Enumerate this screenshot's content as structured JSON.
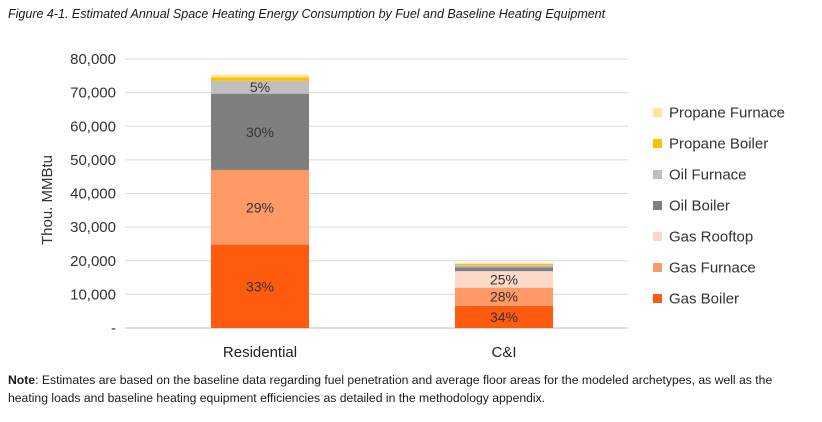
{
  "figure_title": "Figure 4-1. Estimated Annual Space Heating Energy Consumption by Fuel and Baseline Heating Equipment",
  "note": {
    "label": "Note",
    "text": ": Estimates are based on the baseline data regarding fuel penetration and average floor areas for the modeled archetypes, as well as the heating loads and baseline heating equipment efficiencies as detailed in the methodology appendix."
  },
  "chart_data": {
    "type": "bar",
    "stacked": true,
    "title": "",
    "xlabel": "",
    "ylabel": "Thou. MMBtu",
    "ylim": [
      0,
      80000
    ],
    "yticks": [
      0,
      10000,
      20000,
      30000,
      40000,
      50000,
      60000,
      70000,
      80000
    ],
    "ytick_labels": [
      "-",
      "10,000",
      "20,000",
      "30,000",
      "40,000",
      "50,000",
      "60,000",
      "70,000",
      "80,000"
    ],
    "grid": true,
    "legend_position": "right",
    "categories": [
      "Residential",
      "C&I"
    ],
    "series": [
      {
        "name": "Gas Boiler",
        "color": "#FF5B0F",
        "values": [
          24800,
          6600
        ],
        "labels": [
          "33%",
          "34%"
        ]
      },
      {
        "name": "Gas Furnace",
        "color": "#FF9966",
        "values": [
          22200,
          5400
        ],
        "labels": [
          "29%",
          "28%"
        ]
      },
      {
        "name": "Gas Rooftop",
        "color": "#FCD9C8",
        "values": [
          0,
          4900
        ],
        "labels": [
          "",
          "25%"
        ]
      },
      {
        "name": "Oil Boiler",
        "color": "#7F7F7F",
        "values": [
          22700,
          1100
        ],
        "labels": [
          "30%",
          ""
        ]
      },
      {
        "name": "Oil Furnace",
        "color": "#BFBFBF",
        "values": [
          3800,
          700
        ],
        "labels": [
          "5%",
          ""
        ]
      },
      {
        "name": "Propane Boiler",
        "color": "#FFC000",
        "values": [
          1000,
          400
        ],
        "labels": [
          "",
          ""
        ]
      },
      {
        "name": "Propane Furnace",
        "color": "#FFE699",
        "values": [
          800,
          300
        ],
        "labels": [
          "",
          ""
        ]
      }
    ]
  }
}
